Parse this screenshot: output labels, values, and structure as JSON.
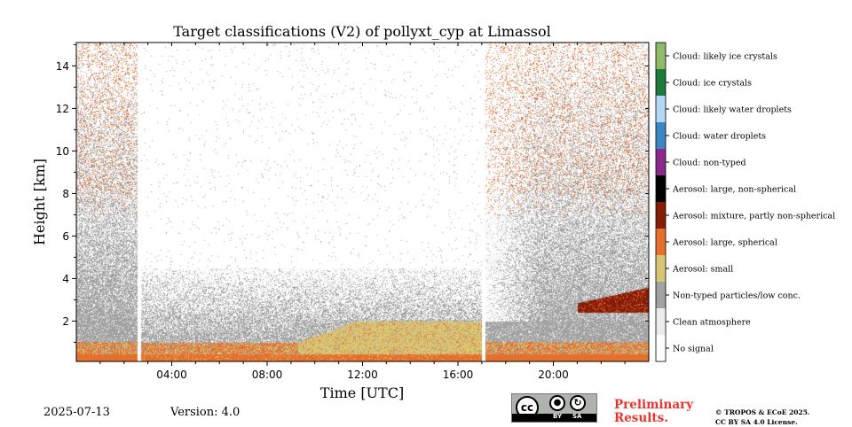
{
  "chart_data": {
    "type": "heatmap",
    "title": "Target classifications (V2) of pollyxt_cyp at Limassol",
    "xlabel": "Time [UTC]",
    "ylabel": "Height [km]",
    "x_range_hours": [
      0,
      24
    ],
    "y_range_km": [
      0.1,
      15.1
    ],
    "x_ticks": [
      "04:00",
      "08:00",
      "12:00",
      "16:00",
      "20:00"
    ],
    "x_tick_hours": [
      4,
      8,
      12,
      16,
      20
    ],
    "y_ticks": [
      "2",
      "4",
      "6",
      "8",
      "10",
      "12",
      "14"
    ],
    "y_tick_km": [
      2,
      4,
      6,
      8,
      10,
      12,
      14
    ],
    "data_gaps_hours": [
      [
        2.55,
        2.7
      ],
      [
        17.0,
        17.13
      ]
    ],
    "colorbar": {
      "classes": [
        {
          "label": "Cloud: likely ice crystals",
          "color": "#8fbc6b"
        },
        {
          "label": "Cloud: ice crystals",
          "color": "#1d7a3a"
        },
        {
          "label": "Cloud: likely water droplets",
          "color": "#b3d8f5"
        },
        {
          "label": "Cloud: water droplets",
          "color": "#3b87c4"
        },
        {
          "label": "Cloud: non-typed",
          "color": "#8a2a8a"
        },
        {
          "label": "Aerosol: large, non-spherical",
          "color": "#000000"
        },
        {
          "label": "Aerosol: mixture, partly non-spherical",
          "color": "#861c08"
        },
        {
          "label": "Aerosol: large, spherical",
          "color": "#e56f2d"
        },
        {
          "label": "Aerosol: small",
          "color": "#d9c674"
        },
        {
          "label": "Non-typed particles/low conc.",
          "color": "#a2a2a2"
        },
        {
          "label": "Clean atmosphere",
          "color": "#ececec"
        },
        {
          "label": "No signal",
          "color": "#ffffff"
        }
      ]
    }
  },
  "footer": {
    "date": "2025-07-13",
    "version": "Version: 4.0",
    "preliminary_line1": "Preliminary",
    "preliminary_line2": "Results.",
    "copyright_line1": "© TROPOS & ECoE 2025.",
    "copyright_line2": "CC BY SA 4.0 License.",
    "license_badge": {
      "cc": "cc",
      "by": "BY",
      "sa": "SA",
      "icon": "creative-commons-icon"
    }
  }
}
